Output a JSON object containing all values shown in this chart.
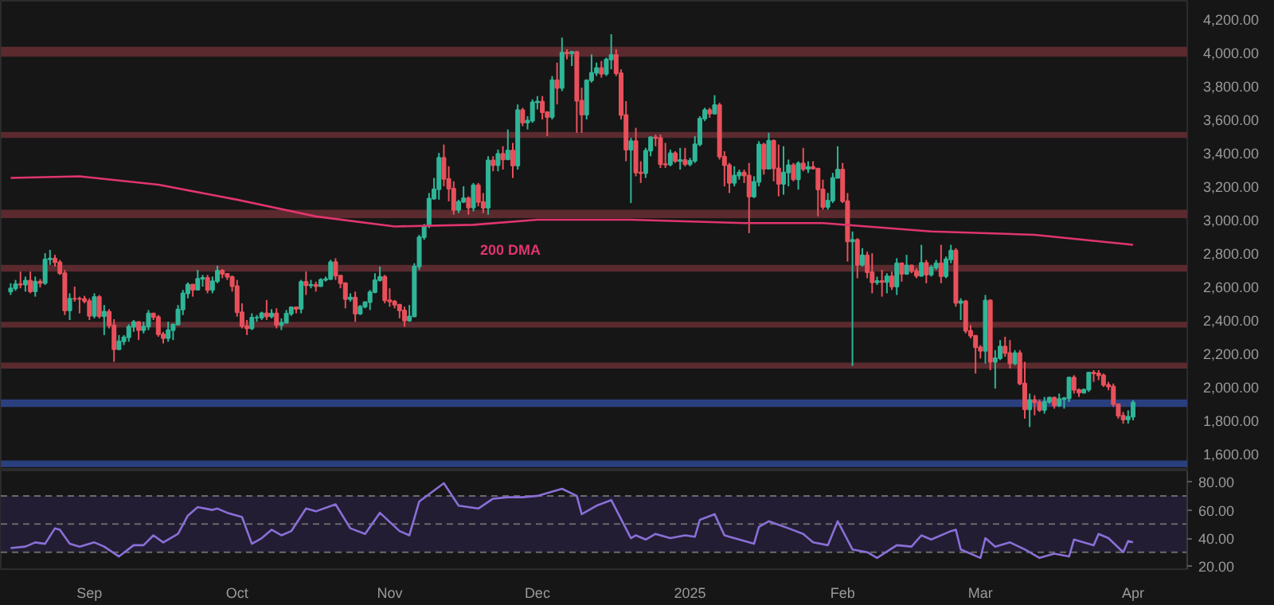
{
  "chart_data": [
    {
      "type": "candlestick",
      "xlim": [
        "2024-08-14",
        "2025-04-12"
      ],
      "ylim": [
        1500,
        4310
      ],
      "tick_labels": "y",
      "yticks": [
        {
          "value": 1600,
          "label": "1,600.00"
        },
        {
          "value": 1800,
          "label": "1,800.00"
        },
        {
          "value": 2000,
          "label": "2,000.00"
        },
        {
          "value": 2200,
          "label": "2,200.00"
        },
        {
          "value": 2400,
          "label": "2,400.00"
        },
        {
          "value": 2600,
          "label": "2,600.00"
        },
        {
          "value": 2800,
          "label": "2,800.00"
        },
        {
          "value": 3000,
          "label": "3,000.00"
        },
        {
          "value": 3200,
          "label": "3,200.00"
        },
        {
          "value": 3400,
          "label": "3,400.00"
        },
        {
          "value": 3600,
          "label": "3,600.00"
        },
        {
          "value": 3800,
          "label": "3,800.00"
        },
        {
          "value": 4000,
          "label": "4,000.00"
        },
        {
          "value": 4200,
          "label": "4,200.00"
        }
      ],
      "bands": [
        {
          "axis": "y",
          "from": 3975,
          "to": 4035,
          "color": "#5a2a2e"
        },
        {
          "axis": "y",
          "from": 3490,
          "to": 3525,
          "color": "#5a2a2e"
        },
        {
          "axis": "y",
          "from": 3010,
          "to": 3060,
          "color": "#5a2a2e"
        },
        {
          "axis": "y",
          "from": 2690,
          "to": 2730,
          "color": "#5a2a2e"
        },
        {
          "axis": "y",
          "from": 2355,
          "to": 2390,
          "color": "#5a2a2e"
        },
        {
          "axis": "y",
          "from": 2110,
          "to": 2145,
          "color": "#5a2a2e"
        },
        {
          "axis": "y",
          "from": 1880,
          "to": 1925,
          "color": "#2a3f7e"
        },
        {
          "axis": "y",
          "from": 1520,
          "to": 1560,
          "color": "#2a3f7e"
        }
      ],
      "annotations": [
        "200 DMA"
      ],
      "series": [
        {
          "type": "candlestick",
          "color": "#2fb597",
          "x": [
            "2024-08-16",
            "2024-08-17",
            "2024-08-19",
            "2024-08-21",
            "2024-08-23",
            "2024-08-24",
            "2024-08-28",
            "2024-09-02",
            "2024-09-04",
            "2024-09-07",
            "2024-09-08",
            "2024-09-09",
            "2024-09-10",
            "2024-09-12",
            "2024-09-13",
            "2024-09-17",
            "2024-09-18",
            "2024-09-19",
            "2024-09-20",
            "2024-09-21",
            "2024-09-23",
            "2024-09-24",
            "2024-09-26",
            "2024-09-27",
            "2024-10-04",
            "2024-10-05",
            "2024-10-06",
            "2024-10-08",
            "2024-10-10",
            "2024-10-11",
            "2024-10-12",
            "2024-10-14",
            "2024-10-16",
            "2024-10-18",
            "2024-10-19",
            "2024-10-20",
            "2024-10-24",
            "2024-10-26",
            "2024-10-27",
            "2024-10-28",
            "2024-10-29",
            "2024-10-30",
            "2024-11-05",
            "2024-11-06",
            "2024-11-07",
            "2024-11-08",
            "2024-11-09",
            "2024-11-10",
            "2024-11-11",
            "2024-11-15",
            "2024-11-16",
            "2024-11-18",
            "2024-11-21",
            "2024-11-23",
            "2024-11-25",
            "2024-11-27",
            "2024-11-29",
            "2024-11-30",
            "2024-12-01",
            "2024-12-04",
            "2024-12-06",
            "2024-12-08",
            "2024-12-11",
            "2024-12-12",
            "2024-12-13",
            "2024-12-15",
            "2024-12-16",
            "2024-12-20",
            "2024-12-23",
            "2024-12-24",
            "2024-12-28",
            "2024-12-30",
            "2025-01-01",
            "2025-01-02",
            "2025-01-03",
            "2025-01-04",
            "2025-01-06",
            "2025-01-10",
            "2025-01-11",
            "2025-01-14",
            "2025-01-15",
            "2025-01-17",
            "2025-01-20",
            "2025-01-21",
            "2025-01-23",
            "2025-01-25",
            "2025-01-29",
            "2025-01-30",
            "2025-01-31",
            "2025-02-03",
            "2025-02-05",
            "2025-02-08",
            "2025-02-10",
            "2025-02-12",
            "2025-02-14",
            "2025-02-17",
            "2025-02-19",
            "2025-02-20",
            "2025-02-22",
            "2025-02-23",
            "2025-02-25",
            "2025-03-02",
            "2025-03-04",
            "2025-03-05",
            "2025-03-08",
            "2025-03-11",
            "2025-03-14",
            "2025-03-15",
            "2025-03-17",
            "2025-03-18",
            "2025-03-19",
            "2025-03-22",
            "2025-03-23",
            "2025-03-31",
            "2025-04-01"
          ],
          "ohlc": [
            [
              2570,
              2620,
              2550,
              2590
            ],
            [
              2590,
              2640,
              2575,
              2614
            ],
            [
              2612,
              2660,
              2570,
              2636
            ],
            [
              2572,
              2660,
              2540,
              2630
            ],
            [
              2622,
              2800,
              2610,
              2763
            ],
            [
              2763,
              2820,
              2730,
              2768
            ],
            [
              2457,
              2560,
              2400,
              2528
            ],
            [
              2425,
              2560,
              2410,
              2538
            ],
            [
              2423,
              2490,
              2310,
              2450
            ],
            [
              2225,
              2310,
              2220,
              2273
            ],
            [
              2273,
              2310,
              2250,
              2297
            ],
            [
              2297,
              2375,
              2270,
              2360
            ],
            [
              2360,
              2400,
              2330,
              2388
            ],
            [
              2340,
              2390,
              2320,
              2361
            ],
            [
              2361,
              2460,
              2340,
              2439
            ],
            [
              2292,
              2390,
              2270,
              2340
            ],
            [
              2340,
              2380,
              2280,
              2373
            ],
            [
              2373,
              2490,
              2370,
              2463
            ],
            [
              2463,
              2580,
              2430,
              2560
            ],
            [
              2560,
              2625,
              2530,
              2612
            ],
            [
              2581,
              2700,
              2580,
              2647
            ],
            [
              2647,
              2670,
              2600,
              2653
            ],
            [
              2580,
              2660,
              2560,
              2632
            ],
            [
              2632,
              2725,
              2620,
              2696
            ],
            [
              2350,
              2440,
              2340,
              2414
            ],
            [
              2414,
              2430,
              2390,
              2415
            ],
            [
              2415,
              2450,
              2400,
              2441
            ],
            [
              2422,
              2465,
              2410,
              2440
            ],
            [
              2370,
              2410,
              2340,
              2384
            ],
            [
              2384,
              2460,
              2380,
              2438
            ],
            [
              2438,
              2480,
              2425,
              2476
            ],
            [
              2467,
              2640,
              2440,
              2629
            ],
            [
              2607,
              2640,
              2590,
              2611
            ],
            [
              2603,
              2650,
              2600,
              2641
            ],
            [
              2641,
              2660,
              2630,
              2646
            ],
            [
              2646,
              2760,
              2640,
              2747
            ],
            [
              2525,
              2560,
              2510,
              2535
            ],
            [
              2438,
              2490,
              2430,
              2480
            ],
            [
              2480,
              2510,
              2470,
              2507
            ],
            [
              2507,
              2580,
              2460,
              2567
            ],
            [
              2567,
              2680,
              2560,
              2638
            ],
            [
              2638,
              2720,
              2630,
              2659
            ],
            [
              2397,
              2490,
              2390,
              2421
            ],
            [
              2421,
              2740,
              2420,
              2721
            ],
            [
              2721,
              2910,
              2700,
              2895
            ],
            [
              2895,
              2975,
              2880,
              2962
            ],
            [
              2962,
              3160,
              2950,
              3127
            ],
            [
              3127,
              3250,
              3120,
              3182
            ],
            [
              3182,
              3400,
              3120,
              3370
            ],
            [
              3059,
              3120,
              3040,
              3108
            ],
            [
              3108,
              3200,
              3100,
              3129
            ],
            [
              3073,
              3220,
              3050,
              3206
            ],
            [
              3072,
              3380,
              3030,
              3355
            ],
            [
              3326,
              3420,
              3290,
              3394
            ],
            [
              3361,
              3540,
              3360,
              3415
            ],
            [
              3324,
              3690,
              3300,
              3656
            ],
            [
              3581,
              3620,
              3540,
              3593
            ],
            [
              3593,
              3720,
              3580,
              3703
            ],
            [
              3703,
              3740,
              3660,
              3707
            ],
            [
              3615,
              3860,
              3600,
              3835
            ],
            [
              3788,
              4090,
              3770,
              4001
            ],
            [
              3996,
              4010,
              3920,
              4004
            ],
            [
              3629,
              3840,
              3600,
              3834
            ],
            [
              3834,
              3990,
              3820,
              3879
            ],
            [
              3879,
              3940,
              3860,
              3907
            ],
            [
              3873,
              3970,
              3860,
              3959
            ],
            [
              3959,
              4110,
              3900,
              3986
            ],
            [
              3419,
              3490,
              3100,
              3470
            ],
            [
              3279,
              3430,
              3250,
              3413
            ],
            [
              3413,
              3500,
              3380,
              3493
            ],
            [
              3330,
              3420,
              3320,
              3398
            ],
            [
              3351,
              3430,
              3300,
              3358
            ],
            [
              3332,
              3370,
              3320,
              3353
            ],
            [
              3353,
              3500,
              3340,
              3451
            ],
            [
              3451,
              3620,
              3440,
              3605
            ],
            [
              3605,
              3670,
              3590,
              3656
            ],
            [
              3635,
              3745,
              3630,
              3686
            ],
            [
              3221,
              3320,
              3200,
              3265
            ],
            [
              3265,
              3300,
              3240,
              3283
            ],
            [
              3138,
              3260,
              3130,
              3226
            ],
            [
              3226,
              3470,
              3200,
              3450
            ],
            [
              3305,
              3520,
              3300,
              3473
            ],
            [
              3215,
              3440,
              3150,
              3282
            ],
            [
              3282,
              3360,
              3200,
              3326
            ],
            [
              3242,
              3350,
              3180,
              3337
            ],
            [
              3304,
              3350,
              3280,
              3316
            ],
            [
              3076,
              3160,
              3060,
              3114
            ],
            [
              3114,
              3280,
              3100,
              3250
            ],
            [
              3250,
              3440,
              3250,
              3300
            ],
            [
              2870,
              2930,
              2125,
              2880
            ],
            [
              2730,
              2830,
              2720,
              2787
            ],
            [
              2625,
              2660,
              2610,
              2633
            ],
            [
              2627,
              2680,
              2560,
              2662
            ],
            [
              2600,
              2770,
              2550,
              2739
            ],
            [
              2676,
              2790,
              2670,
              2726
            ],
            [
              2664,
              2850,
              2660,
              2742
            ],
            [
              2672,
              2730,
              2660,
              2714
            ],
            [
              2714,
              2760,
              2700,
              2739
            ],
            [
              2662,
              2780,
              2650,
              2763
            ],
            [
              2763,
              2850,
              2740,
              2816
            ],
            [
              2502,
              2530,
              2400,
              2512
            ],
            [
              2216,
              2550,
              2140,
              2517
            ],
            [
              2150,
              2220,
              1990,
              2172
            ],
            [
              2172,
              2280,
              2160,
              2242
            ],
            [
              2140,
              2220,
              2130,
              2203
            ],
            [
              1865,
              1960,
              1760,
              1922
            ],
            [
              1862,
              1940,
              1840,
              1911
            ],
            [
              1911,
              1940,
              1900,
              1936
            ],
            [
              1888,
              1960,
              1880,
              1927
            ],
            [
              1927,
              1940,
              1870,
              1932
            ],
            [
              1932,
              2060,
              1910,
              2056
            ],
            [
              1965,
              1990,
              1960,
              1983
            ],
            [
              1983,
              2090,
              1970,
              2086
            ],
            [
              1805,
              1860,
              1780,
              1822
            ],
            [
              1822,
              1920,
              1800,
              1906
            ]
          ]
        },
        {
          "type": "candlestick",
          "color": "#e8505b",
          "x": [
            "2024-08-18",
            "2024-08-20",
            "2024-08-22",
            "2024-08-25",
            "2024-08-26",
            "2024-08-27",
            "2024-08-29",
            "2024-08-30",
            "2024-08-31",
            "2024-09-01",
            "2024-09-03",
            "2024-09-05",
            "2024-09-06",
            "2024-09-11",
            "2024-09-14",
            "2024-09-15",
            "2024-09-16",
            "2024-09-22",
            "2024-09-25",
            "2024-09-28",
            "2024-09-29",
            "2024-09-30",
            "2024-10-01",
            "2024-10-02",
            "2024-10-03",
            "2024-10-07",
            "2024-10-09",
            "2024-10-13",
            "2024-10-15",
            "2024-10-17",
            "2024-10-21",
            "2024-10-22",
            "2024-10-23",
            "2024-10-25",
            "2024-10-31",
            "2024-11-01",
            "2024-11-02",
            "2024-11-03",
            "2024-11-04",
            "2024-11-12",
            "2024-11-13",
            "2024-11-14",
            "2024-11-17",
            "2024-11-19",
            "2024-11-20",
            "2024-11-22",
            "2024-11-24",
            "2024-11-26",
            "2024-11-28",
            "2024-12-02",
            "2024-12-03",
            "2024-12-05",
            "2024-12-07",
            "2024-12-09",
            "2024-12-10",
            "2024-12-14",
            "2024-12-17",
            "2024-12-18",
            "2024-12-19",
            "2024-12-21",
            "2024-12-22",
            "2024-12-25",
            "2024-12-26",
            "2024-12-27",
            "2024-12-29",
            "2024-12-31",
            "2025-01-05",
            "2025-01-07",
            "2025-01-08",
            "2025-01-09",
            "2025-01-12",
            "2025-01-13",
            "2025-01-16",
            "2025-01-18",
            "2025-01-19",
            "2025-01-22",
            "2025-01-24",
            "2025-01-26",
            "2025-01-27",
            "2025-01-28",
            "2025-02-01",
            "2025-02-02",
            "2025-02-04",
            "2025-02-06",
            "2025-02-07",
            "2025-02-09",
            "2025-02-11",
            "2025-02-13",
            "2025-02-15",
            "2025-02-16",
            "2025-02-18",
            "2025-02-21",
            "2025-02-24",
            "2025-02-26",
            "2025-02-27",
            "2025-02-28",
            "2025-03-01",
            "2025-03-03",
            "2025-03-06",
            "2025-03-07",
            "2025-03-09",
            "2025-03-10",
            "2025-03-12",
            "2025-03-13",
            "2025-03-16",
            "2025-03-20",
            "2025-03-21",
            "2025-03-24",
            "2025-03-25",
            "2025-03-26",
            "2025-03-27",
            "2025-03-28",
            "2025-03-29",
            "2025-03-30"
          ],
          "ohlc": [
            [
              2614,
              2690,
              2590,
              2612
            ],
            [
              2636,
              2690,
              2560,
              2572
            ],
            [
              2630,
              2645,
              2595,
              2622
            ],
            [
              2768,
              2790,
              2720,
              2746
            ],
            [
              2746,
              2760,
              2670,
              2680
            ],
            [
              2680,
              2700,
              2430,
              2457
            ],
            [
              2528,
              2600,
              2510,
              2527
            ],
            [
              2527,
              2540,
              2440,
              2526
            ],
            [
              2526,
              2545,
              2500,
              2513
            ],
            [
              2513,
              2530,
              2400,
              2425
            ],
            [
              2538,
              2550,
              2410,
              2423
            ],
            [
              2450,
              2465,
              2350,
              2368
            ],
            [
              2368,
              2405,
              2150,
              2225
            ],
            [
              2388,
              2390,
              2280,
              2340
            ],
            [
              2439,
              2440,
              2400,
              2418
            ],
            [
              2418,
              2430,
              2300,
              2315
            ],
            [
              2315,
              2330,
              2260,
              2292
            ],
            [
              2612,
              2615,
              2540,
              2581
            ],
            [
              2653,
              2670,
              2560,
              2580
            ],
            [
              2696,
              2705,
              2650,
              2676
            ],
            [
              2676,
              2680,
              2640,
              2658
            ],
            [
              2658,
              2665,
              2570,
              2602
            ],
            [
              2602,
              2640,
              2420,
              2447
            ],
            [
              2447,
              2500,
              2350,
              2363
            ],
            [
              2363,
              2400,
              2310,
              2350
            ],
            [
              2441,
              2520,
              2400,
              2422
            ],
            [
              2440,
              2470,
              2350,
              2370
            ],
            [
              2476,
              2480,
              2440,
              2467
            ],
            [
              2629,
              2690,
              2550,
              2607
            ],
            [
              2611,
              2630,
              2570,
              2603
            ],
            [
              2747,
              2770,
              2640,
              2666
            ],
            [
              2666,
              2670,
              2590,
              2620
            ],
            [
              2620,
              2625,
              2470,
              2525
            ],
            [
              2535,
              2570,
              2390,
              2438
            ],
            [
              2659,
              2670,
              2500,
              2518
            ],
            [
              2518,
              2590,
              2480,
              2511
            ],
            [
              2511,
              2520,
              2470,
              2492
            ],
            [
              2492,
              2495,
              2410,
              2457
            ],
            [
              2457,
              2480,
              2360,
              2397
            ],
            [
              3370,
              3450,
              3200,
              3244
            ],
            [
              3244,
              3320,
              3110,
              3186
            ],
            [
              3186,
              3230,
              3030,
              3059
            ],
            [
              3129,
              3140,
              3030,
              3073
            ],
            [
              3206,
              3220,
              3080,
              3106
            ],
            [
              3106,
              3160,
              3040,
              3072
            ],
            [
              3355,
              3380,
              3290,
              3326
            ],
            [
              3394,
              3440,
              3300,
              3361
            ],
            [
              3415,
              3460,
              3250,
              3324
            ],
            [
              3656,
              3670,
              3560,
              3581
            ],
            [
              3707,
              3740,
              3600,
              3643
            ],
            [
              3643,
              3650,
              3500,
              3615
            ],
            [
              3835,
              3940,
              3690,
              3788
            ],
            [
              4001,
              4020,
              3960,
              3996
            ],
            [
              4004,
              4010,
              3520,
              3712
            ],
            [
              3712,
              3790,
              3520,
              3629
            ],
            [
              3907,
              3950,
              3850,
              3873
            ],
            [
              3986,
              4020,
              3860,
              3876
            ],
            [
              3876,
              3900,
              3600,
              3626
            ],
            [
              3626,
              3710,
              3350,
              3419
            ],
            [
              3470,
              3550,
              3260,
              3282
            ],
            [
              3282,
              3350,
              3220,
              3279
            ],
            [
              3493,
              3510,
              3440,
              3489
            ],
            [
              3489,
              3510,
              3310,
              3333
            ],
            [
              3333,
              3460,
              3310,
              3330
            ],
            [
              3398,
              3410,
              3340,
              3351
            ],
            [
              3358,
              3430,
              3320,
              3332
            ],
            [
              3656,
              3670,
              3610,
              3635
            ],
            [
              3686,
              3700,
              3360,
              3378
            ],
            [
              3378,
              3410,
              3200,
              3326
            ],
            [
              3326,
              3340,
              3160,
              3221
            ],
            [
              3283,
              3300,
              3220,
              3265
            ],
            [
              3265,
              3340,
              2920,
              3138
            ],
            [
              3450,
              3460,
              3270,
              3305
            ],
            [
              3473,
              3480,
              3230,
              3307
            ],
            [
              3307,
              3450,
              3140,
              3215
            ],
            [
              3326,
              3340,
              3230,
              3242
            ],
            [
              3337,
              3430,
              3290,
              3304
            ],
            [
              3316,
              3350,
              3300,
              3306
            ],
            [
              3306,
              3310,
              3020,
              3181
            ],
            [
              3181,
              3240,
              3060,
              3076
            ],
            [
              3300,
              3340,
              3100,
              3111
            ],
            [
              3111,
              3160,
              2750,
              2870
            ],
            [
              2880,
              2890,
              2650,
              2730
            ],
            [
              2787,
              2810,
              2650,
              2686
            ],
            [
              2686,
              2800,
              2560,
              2625
            ],
            [
              2633,
              2700,
              2540,
              2627
            ],
            [
              2662,
              2690,
              2580,
              2600
            ],
            [
              2739,
              2740,
              2630,
              2676
            ],
            [
              2726,
              2730,
              2680,
              2693
            ],
            [
              2693,
              2710,
              2650,
              2664
            ],
            [
              2742,
              2760,
              2620,
              2672
            ],
            [
              2739,
              2850,
              2620,
              2662
            ],
            [
              2816,
              2830,
              2480,
              2502
            ],
            [
              2512,
              2520,
              2320,
              2336
            ],
            [
              2336,
              2370,
              2290,
              2306
            ],
            [
              2306,
              2310,
              2080,
              2237
            ],
            [
              2237,
              2250,
              2170,
              2216
            ],
            [
              2517,
              2525,
              2100,
              2150
            ],
            [
              2242,
              2300,
              2180,
              2202
            ],
            [
              2202,
              2280,
              2110,
              2140
            ],
            [
              2203,
              2220,
              2010,
              2020
            ],
            [
              2020,
              2150,
              1810,
              1865
            ],
            [
              1922,
              1950,
              1830,
              1908
            ],
            [
              1908,
              1925,
              1850,
              1862
            ],
            [
              1936,
              1940,
              1870,
              1888
            ],
            [
              2056,
              2070,
              1960,
              1982
            ],
            [
              1982,
              1990,
              1940,
              1965
            ],
            [
              2086,
              2100,
              2030,
              2081
            ],
            [
              2081,
              2100,
              2040,
              2069
            ],
            [
              2069,
              2080,
              2000,
              2012
            ],
            [
              2012,
              2030,
              1980,
              2003
            ],
            [
              2003,
              2020,
              1880,
              1896
            ],
            [
              1896,
              1900,
              1810,
              1827
            ],
            [
              1827,
              1850,
              1780,
              1805
            ]
          ]
        },
        {
          "type": "line",
          "color": "#e0356e",
          "x": [
            "2024-08-16",
            "2024-08-30",
            "2024-09-15",
            "2024-10-01",
            "2024-10-17",
            "2024-11-02",
            "2024-11-18",
            "2024-12-01",
            "2024-12-20",
            "2025-01-12",
            "2025-01-28",
            "2025-02-19",
            "2025-03-12",
            "2025-04-01"
          ],
          "values": [
            3250,
            3260,
            3210,
            3120,
            3020,
            2960,
            2970,
            3000,
            3000,
            2980,
            2980,
            2930,
            2910,
            2850
          ]
        }
      ]
    },
    {
      "type": "line",
      "xlim": [
        "2024-08-14",
        "2025-04-12"
      ],
      "ylim": [
        18,
        88
      ],
      "yticks": [
        {
          "value": 20,
          "label": "20.00"
        },
        {
          "value": 40,
          "label": "40.00"
        },
        {
          "value": 60,
          "label": "60.00"
        },
        {
          "value": 80,
          "label": "80.00"
        }
      ],
      "xticks": [
        {
          "value": "2024-09-01",
          "label": "Sep"
        },
        {
          "value": "2024-10-01",
          "label": "Oct"
        },
        {
          "value": "2024-11-01",
          "label": "Nov"
        },
        {
          "value": "2024-12-01",
          "label": "Dec"
        },
        {
          "value": "2025-01-01",
          "label": "2025"
        },
        {
          "value": "2025-02-01",
          "label": "Feb"
        },
        {
          "value": "2025-03-01",
          "label": "Mar"
        },
        {
          "value": "2025-04-01",
          "label": "Apr"
        }
      ],
      "bands": [
        {
          "axis": "y",
          "from": 30,
          "to": 70,
          "color": "#221d33"
        }
      ],
      "ref_lines": [
        {
          "axis": "y",
          "value": 70,
          "line_style": "dashed",
          "color": "#6a6a6a"
        },
        {
          "axis": "y",
          "value": 50,
          "line_style": "dashed",
          "color": "#6a6a6a"
        },
        {
          "axis": "y",
          "value": 30,
          "line_style": "dashed",
          "color": "#6a6a6a"
        }
      ],
      "series": [
        {
          "color": "#8a6fd6",
          "x": [
            "2024-08-16",
            "2024-08-19",
            "2024-08-21",
            "2024-08-23",
            "2024-08-25",
            "2024-08-26",
            "2024-08-28",
            "2024-08-30",
            "2024-09-02",
            "2024-09-04",
            "2024-09-07",
            "2024-09-10",
            "2024-09-12",
            "2024-09-14",
            "2024-09-16",
            "2024-09-19",
            "2024-09-21",
            "2024-09-23",
            "2024-09-26",
            "2024-09-27",
            "2024-09-29",
            "2024-10-02",
            "2024-10-04",
            "2024-10-06",
            "2024-10-08",
            "2024-10-10",
            "2024-10-12",
            "2024-10-15",
            "2024-10-17",
            "2024-10-21",
            "2024-10-24",
            "2024-10-27",
            "2024-10-30",
            "2024-11-03",
            "2024-11-05",
            "2024-11-07",
            "2024-11-12",
            "2024-11-15",
            "2024-11-19",
            "2024-11-22",
            "2024-11-25",
            "2024-11-28",
            "2024-12-01",
            "2024-12-06",
            "2024-12-09",
            "2024-12-10",
            "2024-12-13",
            "2024-12-16",
            "2024-12-20",
            "2024-12-21",
            "2024-12-23",
            "2024-12-25",
            "2024-12-28",
            "2024-12-31",
            "2025-01-02",
            "2025-01-03",
            "2025-01-06",
            "2025-01-08",
            "2025-01-11",
            "2025-01-14",
            "2025-01-15",
            "2025-01-17",
            "2025-01-21",
            "2025-01-24",
            "2025-01-26",
            "2025-01-29",
            "2025-01-31",
            "2025-02-03",
            "2025-02-06",
            "2025-02-08",
            "2025-02-12",
            "2025-02-15",
            "2025-02-17",
            "2025-02-19",
            "2025-02-23",
            "2025-02-24",
            "2025-02-25",
            "2025-03-01",
            "2025-03-02",
            "2025-03-04",
            "2025-03-07",
            "2025-03-10",
            "2025-03-13",
            "2025-03-16",
            "2025-03-19",
            "2025-03-20",
            "2025-03-24",
            "2025-03-25",
            "2025-03-27",
            "2025-03-30",
            "2025-03-31",
            "2025-04-01"
          ],
          "values": [
            33,
            34,
            37,
            36,
            47,
            46,
            36,
            34,
            37,
            34,
            27,
            35,
            35,
            42,
            37,
            43,
            56,
            62,
            60,
            61,
            58,
            55,
            36,
            40,
            46,
            42,
            45,
            61,
            59,
            64,
            47,
            43,
            58,
            45,
            42,
            66,
            79,
            63,
            61,
            68,
            69,
            69,
            70,
            75,
            70,
            57,
            63,
            67,
            40,
            42,
            39,
            43,
            40,
            42,
            41,
            53,
            57,
            42,
            39,
            36,
            48,
            52,
            47,
            43,
            37,
            35,
            52,
            32,
            30,
            26,
            35,
            34,
            42,
            39,
            45,
            46,
            32,
            26,
            40,
            34,
            37,
            32,
            26,
            29,
            27,
            39,
            35,
            43,
            40,
            30,
            38,
            37
          ]
        }
      ]
    }
  ]
}
